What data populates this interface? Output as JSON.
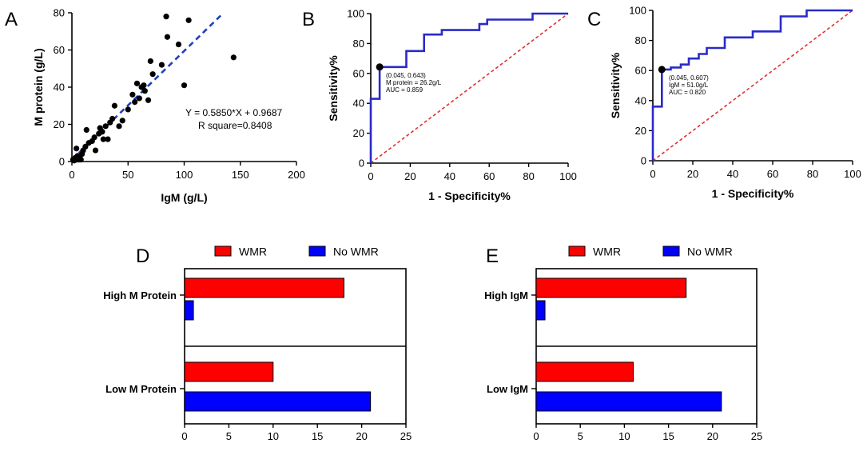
{
  "panel_labels": [
    "A",
    "B",
    "C",
    "D",
    "E"
  ],
  "colors": {
    "red": "#ff0000",
    "blue": "#0000ff",
    "roc": "#2a2ac8",
    "fit": "#1f3fbf",
    "diag": "#e03030"
  },
  "chart_data": [
    {
      "panel": "A",
      "type": "scatter",
      "xlabel": "IgM (g/L)",
      "ylabel": "M protein (g/L)",
      "xlim": [
        0,
        200
      ],
      "ylim": [
        0,
        80
      ],
      "xticks": [
        0,
        50,
        100,
        150,
        200
      ],
      "yticks": [
        0,
        20,
        40,
        60,
        80
      ],
      "points": [
        [
          1,
          1
        ],
        [
          2,
          0.5
        ],
        [
          3,
          2
        ],
        [
          4,
          1
        ],
        [
          5,
          3
        ],
        [
          6,
          1
        ],
        [
          7,
          2
        ],
        [
          8,
          1
        ],
        [
          4,
          7
        ],
        [
          9,
          4
        ],
        [
          10,
          6
        ],
        [
          12,
          8
        ],
        [
          13,
          17
        ],
        [
          15,
          10
        ],
        [
          18,
          11
        ],
        [
          20,
          13
        ],
        [
          21,
          6
        ],
        [
          24,
          15
        ],
        [
          25,
          18
        ],
        [
          27,
          16
        ],
        [
          28,
          12
        ],
        [
          30,
          19
        ],
        [
          32,
          12
        ],
        [
          34,
          21
        ],
        [
          36,
          23
        ],
        [
          38,
          30
        ],
        [
          42,
          19
        ],
        [
          45,
          22
        ],
        [
          50,
          28
        ],
        [
          54,
          36
        ],
        [
          56,
          32
        ],
        [
          58,
          42
        ],
        [
          60,
          34
        ],
        [
          62,
          40
        ],
        [
          64,
          41
        ],
        [
          65,
          38
        ],
        [
          68,
          33
        ],
        [
          70,
          54
        ],
        [
          72,
          47
        ],
        [
          80,
          52
        ],
        [
          84,
          78
        ],
        [
          85,
          67
        ],
        [
          95,
          63
        ],
        [
          100,
          41
        ],
        [
          104,
          76
        ],
        [
          144,
          56
        ]
      ],
      "fit": {
        "slope": 0.585,
        "intercept": 0.9687,
        "x_range": [
          0,
          135
        ]
      },
      "annotation": [
        "Y = 0.5850*X + 0.9687",
        "R square=0.8408"
      ]
    },
    {
      "panel": "B",
      "type": "line",
      "xlabel": "1 - Specificity%",
      "ylabel": "Sensitivity%",
      "xlim": [
        0,
        100
      ],
      "ylim": [
        0,
        100
      ],
      "xticks": [
        0,
        20,
        40,
        60,
        80,
        100
      ],
      "yticks": [
        0,
        20,
        40,
        60,
        80,
        100
      ],
      "roc": [
        [
          0,
          0
        ],
        [
          0,
          43
        ],
        [
          4.5,
          43
        ],
        [
          4.5,
          64.3
        ],
        [
          18,
          64.3
        ],
        [
          18,
          75
        ],
        [
          27,
          75
        ],
        [
          27,
          86
        ],
        [
          36,
          86
        ],
        [
          36,
          89
        ],
        [
          55,
          89
        ],
        [
          55,
          93
        ],
        [
          59,
          93
        ],
        [
          59,
          96
        ],
        [
          82,
          96
        ],
        [
          82,
          100
        ],
        [
          100,
          100
        ]
      ],
      "point": [
        4.5,
        64.3
      ],
      "annotation": [
        "(0.045, 0.643)",
        "M protein = 26.2g/L",
        "AUC = 0.859"
      ]
    },
    {
      "panel": "C",
      "type": "line",
      "xlabel": "1 - Specificity%",
      "ylabel": "Sensitivity%",
      "xlim": [
        0,
        100
      ],
      "ylim": [
        0,
        100
      ],
      "xticks": [
        0,
        20,
        40,
        60,
        80,
        100
      ],
      "yticks": [
        0,
        20,
        40,
        60,
        80,
        100
      ],
      "roc": [
        [
          0,
          0
        ],
        [
          0,
          36
        ],
        [
          4.5,
          36
        ],
        [
          4.5,
          60.7
        ],
        [
          9,
          60.7
        ],
        [
          9,
          62
        ],
        [
          14,
          62
        ],
        [
          14,
          64
        ],
        [
          18,
          64
        ],
        [
          18,
          68
        ],
        [
          23,
          68
        ],
        [
          23,
          71
        ],
        [
          27,
          71
        ],
        [
          27,
          75
        ],
        [
          36,
          75
        ],
        [
          36,
          82
        ],
        [
          50,
          82
        ],
        [
          50,
          86
        ],
        [
          64,
          86
        ],
        [
          64,
          96
        ],
        [
          77,
          96
        ],
        [
          77,
          100
        ],
        [
          100,
          100
        ]
      ],
      "point": [
        4.5,
        60.7
      ],
      "annotation": [
        "(0.045, 0.607)",
        "IgM = 51.0g/L",
        "AUC = 0.820"
      ]
    },
    {
      "panel": "D",
      "type": "bar",
      "orientation": "horizontal",
      "categories": [
        "High M Protein",
        "Low M Protein"
      ],
      "series": [
        {
          "name": "WMR",
          "values": [
            18,
            10
          ]
        },
        {
          "name": "No WMR",
          "values": [
            1,
            21
          ]
        }
      ],
      "xlim": [
        0,
        25
      ],
      "xticks": [
        0,
        5,
        10,
        15,
        20,
        25
      ],
      "legend": "top"
    },
    {
      "panel": "E",
      "type": "bar",
      "orientation": "horizontal",
      "categories": [
        "High IgM",
        "Low IgM"
      ],
      "series": [
        {
          "name": "WMR",
          "values": [
            17,
            11
          ]
        },
        {
          "name": "No WMR",
          "values": [
            1,
            21
          ]
        }
      ],
      "xlim": [
        0,
        25
      ],
      "xticks": [
        0,
        5,
        10,
        15,
        20,
        25
      ],
      "legend": "top"
    }
  ]
}
